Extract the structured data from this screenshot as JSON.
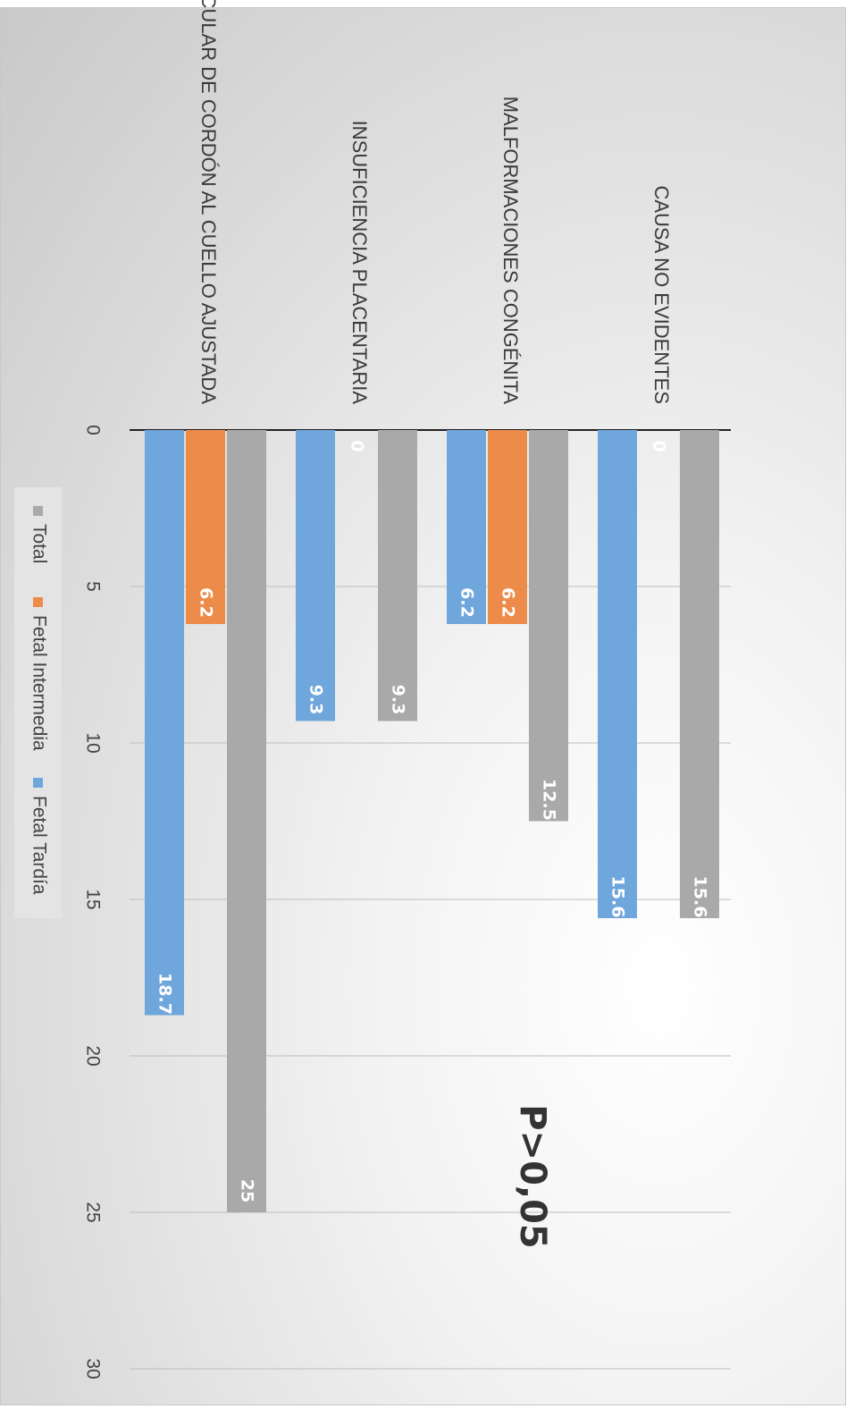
{
  "chart_data": {
    "type": "bar",
    "orientation": "horizontal",
    "categories": [
      "CAUSA NO EVIDENTES",
      "MALFORMACIONES CONGÉNITA",
      "INSUFICIENCIA PLACENTARIA",
      "CIRCULAR DE CORDÓN AL CUELLO AJUSTADA"
    ],
    "series": [
      {
        "name": "Total",
        "color": "#a9a9a9",
        "values": [
          15.6,
          12.5,
          9.3,
          25
        ]
      },
      {
        "name": "Fetal Intermedia",
        "color": "#ed8b4a",
        "values": [
          0,
          6.2,
          0,
          6.2
        ]
      },
      {
        "name": "Fetal Tardía",
        "color": "#6fa6db",
        "values": [
          15.6,
          6.2,
          9.3,
          18.7
        ]
      }
    ],
    "value_labels": [
      [
        "15.6",
        "12.5",
        "9.3",
        "25"
      ],
      [
        "0",
        "6.2",
        "0",
        "6.2"
      ],
      [
        "15.6",
        "6.2",
        "9.3",
        "18.7"
      ]
    ],
    "xlim": [
      0,
      30
    ],
    "ticks": [
      0,
      5,
      10,
      15,
      20,
      25,
      30
    ],
    "grid": true,
    "legend_position": "bottom",
    "annotation": "P>0,05",
    "rotated": "image rotated 90 degrees clockwise"
  }
}
